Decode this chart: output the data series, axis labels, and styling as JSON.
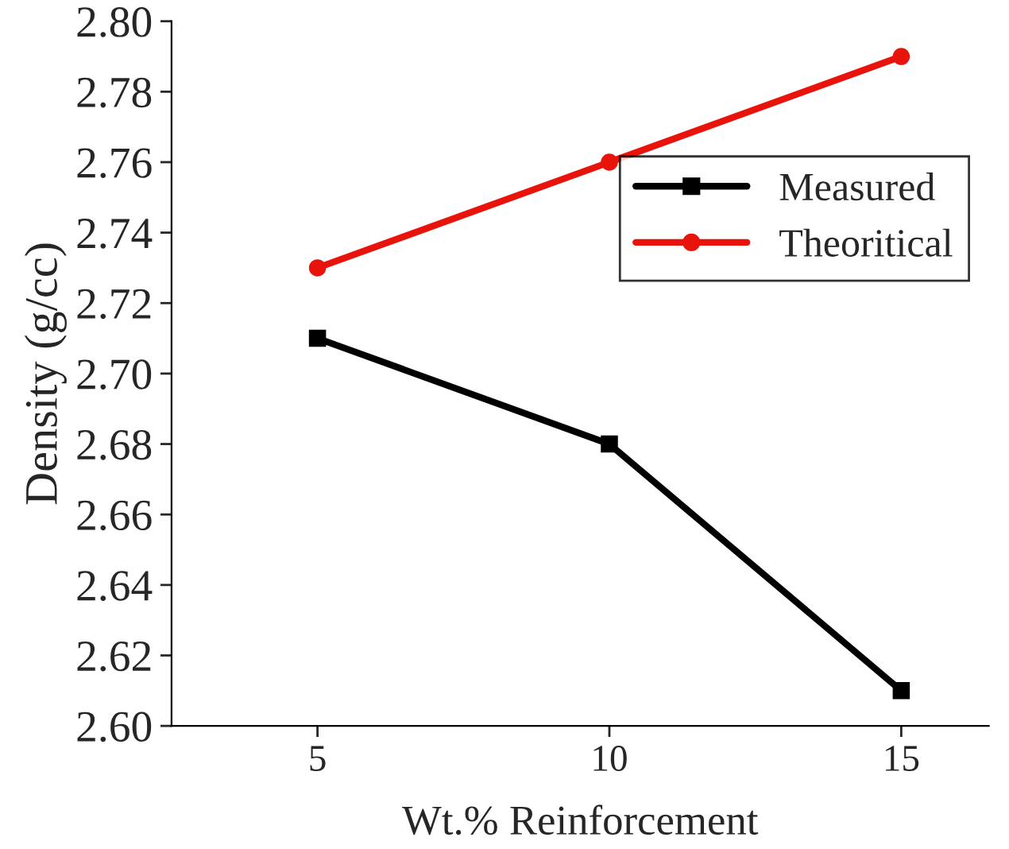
{
  "chart_data": {
    "type": "line",
    "xlabel": "Wt.% Reinforcement",
    "ylabel": "Density (g/cc)",
    "x": [
      5,
      10,
      15
    ],
    "series": [
      {
        "name": "Measured",
        "color": "#000000",
        "values": [
          2.71,
          2.68,
          2.61
        ],
        "marker": "square"
      },
      {
        "name": "Theoritical",
        "color": "#e8140c",
        "values": [
          2.73,
          2.76,
          2.79
        ],
        "marker": "circle"
      }
    ],
    "xlim": [
      2.5,
      16.5
    ],
    "xticks": [
      5,
      10,
      15
    ],
    "ylim": [
      2.6,
      2.8
    ],
    "yticks": [
      {
        "value": 2.6,
        "label": "2.60"
      },
      {
        "value": 2.62,
        "label": "2.62"
      },
      {
        "value": 2.64,
        "label": "2.64"
      },
      {
        "value": 2.66,
        "label": "2.66"
      },
      {
        "value": 2.68,
        "label": "2.68"
      },
      {
        "value": 2.7,
        "label": "2.70"
      },
      {
        "value": 2.72,
        "label": "2.72"
      },
      {
        "value": 2.74,
        "label": "2.74"
      },
      {
        "value": 2.76,
        "label": "2.76"
      },
      {
        "value": 2.78,
        "label": "2.78"
      },
      {
        "value": 2.8,
        "label": "2.80"
      }
    ],
    "legend": "right",
    "grid": false,
    "line_style": "solid"
  }
}
